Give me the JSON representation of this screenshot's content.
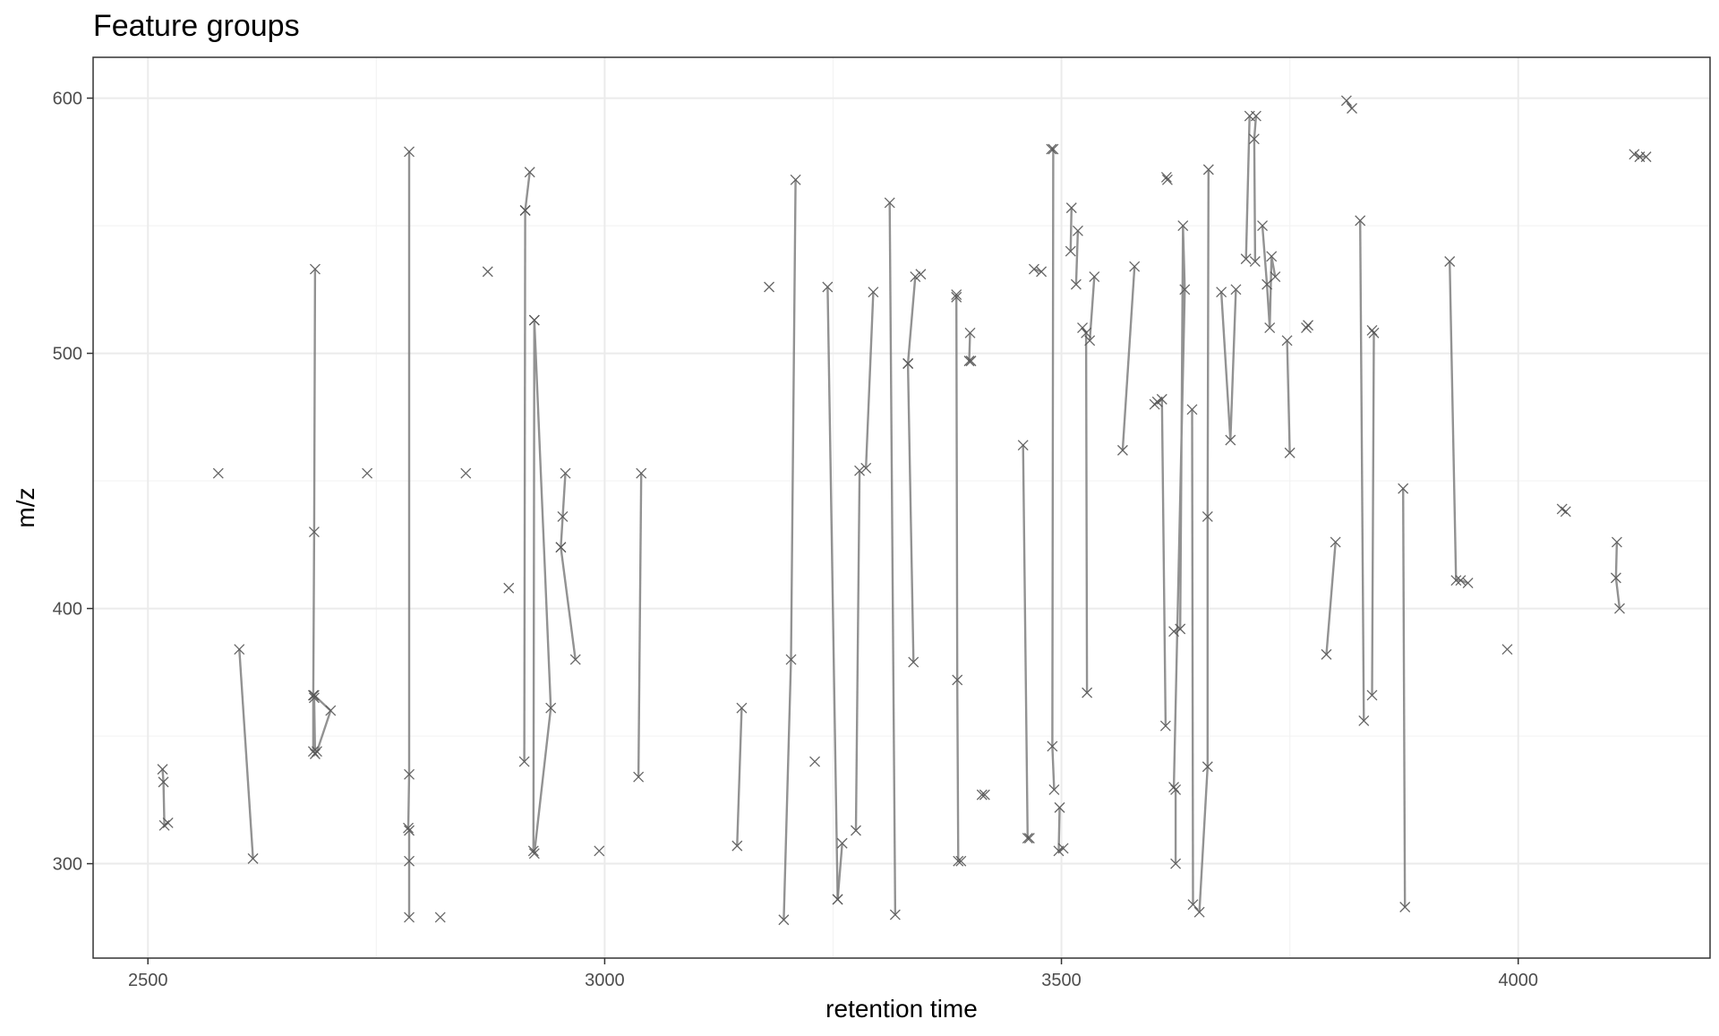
{
  "chart_data": {
    "type": "scatter",
    "title": "Feature groups",
    "xlabel": "retention time",
    "ylabel": "m/z",
    "xlim": [
      2440,
      4210
    ],
    "ylim": [
      263,
      616
    ],
    "xticks": [
      2500,
      3000,
      3500,
      4000
    ],
    "yticks": [
      300,
      400,
      500,
      600
    ],
    "grid": true,
    "legend": "none",
    "colors": {
      "line": "#7f7f7f",
      "point": "#555555",
      "grid": "#ebebeb",
      "border": "#333333"
    },
    "point_marker": "x",
    "groups": [
      [
        [
          2516,
          337
        ],
        [
          2517,
          332
        ],
        [
          2518,
          315
        ],
        [
          2522,
          316
        ]
      ],
      [
        [
          2577,
          453
        ]
      ],
      [
        [
          2600,
          384
        ],
        [
          2615,
          302
        ]
      ],
      [
        [
          2683,
          533
        ],
        [
          2682,
          430
        ],
        [
          2681,
          366
        ],
        [
          2681,
          344
        ],
        [
          2682,
          365
        ],
        [
          2683,
          343
        ],
        [
          2685,
          344
        ],
        [
          2700,
          360
        ],
        [
          2682,
          366
        ]
      ],
      [
        [
          2740,
          453
        ]
      ],
      [
        [
          2786,
          579
        ],
        [
          2786,
          335
        ],
        [
          2785,
          314
        ],
        [
          2786,
          313
        ],
        [
          2786,
          301
        ],
        [
          2786,
          279
        ]
      ],
      [
        [
          2820,
          279
        ]
      ],
      [
        [
          2848,
          453
        ]
      ],
      [
        [
          2872,
          532
        ]
      ],
      [
        [
          2895,
          408
        ]
      ],
      [
        [
          2913,
          556
        ],
        [
          2918,
          571
        ]
      ],
      [
        [
          2912,
          340
        ],
        [
          2913,
          556
        ]
      ],
      [
        [
          2923,
          513
        ],
        [
          2922,
          305
        ],
        [
          2923,
          304
        ],
        [
          2941,
          361
        ],
        [
          2923,
          513
        ]
      ],
      [
        [
          2952,
          424
        ],
        [
          2954,
          436
        ],
        [
          2957,
          453
        ]
      ],
      [
        [
          2952,
          424
        ],
        [
          2968,
          380
        ]
      ],
      [
        [
          2994,
          305
        ]
      ],
      [
        [
          3040,
          453
        ],
        [
          3037,
          334
        ]
      ],
      [
        [
          3145,
          307
        ],
        [
          3150,
          361
        ]
      ],
      [
        [
          3180,
          526
        ]
      ],
      [
        [
          3196,
          278
        ],
        [
          3204,
          380
        ],
        [
          3209,
          568
        ]
      ],
      [
        [
          3230,
          340
        ]
      ],
      [
        [
          3244,
          526
        ],
        [
          3255,
          286
        ]
      ],
      [
        [
          3260,
          308
        ],
        [
          3255,
          286
        ]
      ],
      [
        [
          3275,
          313
        ],
        [
          3279,
          454
        ]
      ],
      [
        [
          3286,
          455
        ],
        [
          3294,
          524
        ]
      ],
      [
        [
          3312,
          559
        ],
        [
          3318,
          280
        ]
      ],
      [
        [
          3332,
          496
        ],
        [
          3340,
          530
        ]
      ],
      [
        [
          3338,
          379
        ],
        [
          3332,
          496
        ]
      ],
      [
        [
          3346,
          531
        ]
      ],
      [
        [
          3385,
          523
        ],
        [
          3385,
          522
        ],
        [
          3386,
          372
        ],
        [
          3387,
          301
        ],
        [
          3390,
          301
        ]
      ],
      [
        [
          3400,
          508
        ],
        [
          3399,
          497
        ],
        [
          3401,
          497
        ]
      ],
      [
        [
          3413,
          327
        ],
        [
          3416,
          327
        ]
      ],
      [
        [
          3458,
          464
        ],
        [
          3463,
          310
        ],
        [
          3465,
          310
        ]
      ],
      [
        [
          3470,
          533
        ],
        [
          3478,
          532
        ]
      ],
      [
        [
          3489,
          580
        ],
        [
          3491,
          580
        ],
        [
          3490,
          346
        ],
        [
          3492,
          329
        ]
      ],
      [
        [
          3498,
          322
        ],
        [
          3497,
          305
        ],
        [
          3502,
          306
        ]
      ],
      [
        [
          3511,
          557
        ],
        [
          3510,
          540
        ]
      ],
      [
        [
          3518,
          548
        ],
        [
          3516,
          527
        ]
      ],
      [
        [
          3523,
          510
        ],
        [
          3527,
          508
        ],
        [
          3528,
          367
        ]
      ],
      [
        [
          3531,
          505
        ],
        [
          3536,
          530
        ]
      ],
      [
        [
          3567,
          462
        ],
        [
          3580,
          534
        ]
      ],
      [
        [
          3602,
          480
        ],
        [
          3605,
          481
        ],
        [
          3610,
          482
        ],
        [
          3614,
          354
        ]
      ],
      [
        [
          3615,
          569
        ],
        [
          3616,
          568
        ]
      ],
      [
        [
          3623,
          391
        ],
        [
          3630,
          392
        ],
        [
          3633,
          550
        ],
        [
          3635,
          525
        ],
        [
          3623,
          330
        ],
        [
          3625,
          329
        ],
        [
          3625,
          300
        ]
      ],
      [
        [
          3643,
          478
        ],
        [
          3644,
          284
        ]
      ],
      [
        [
          3651,
          281
        ],
        [
          3660,
          338
        ],
        [
          3660,
          436
        ],
        [
          3661,
          572
        ]
      ],
      [
        [
          3675,
          524
        ],
        [
          3685,
          466
        ],
        [
          3691,
          525
        ]
      ],
      [
        [
          3702,
          537
        ],
        [
          3706,
          593
        ]
      ],
      [
        [
          3712,
          536
        ],
        [
          3711,
          584
        ],
        [
          3713,
          593
        ]
      ],
      [
        [
          3720,
          550
        ],
        [
          3725,
          527
        ],
        [
          3728,
          510
        ],
        [
          3730,
          538
        ],
        [
          3734,
          530
        ]
      ],
      [
        [
          3747,
          505
        ],
        [
          3750,
          461
        ]
      ],
      [
        [
          3768,
          510
        ],
        [
          3770,
          511
        ]
      ],
      [
        [
          3790,
          382
        ],
        [
          3800,
          426
        ]
      ],
      [
        [
          3812,
          599
        ],
        [
          3818,
          596
        ]
      ],
      [
        [
          3827,
          552
        ],
        [
          3831,
          356
        ]
      ],
      [
        [
          3840,
          509
        ],
        [
          3842,
          508
        ],
        [
          3840,
          366
        ]
      ],
      [
        [
          3874,
          447
        ],
        [
          3876,
          283
        ]
      ],
      [
        [
          3925,
          536
        ],
        [
          3932,
          411
        ],
        [
          3937,
          411
        ],
        [
          3945,
          410
        ]
      ],
      [
        [
          3988,
          384
        ]
      ],
      [
        [
          4048,
          439
        ],
        [
          4052,
          438
        ]
      ],
      [
        [
          4108,
          426
        ],
        [
          4107,
          412
        ],
        [
          4111,
          400
        ]
      ],
      [
        [
          4127,
          578
        ],
        [
          4133,
          577
        ],
        [
          4140,
          577
        ]
      ]
    ]
  }
}
